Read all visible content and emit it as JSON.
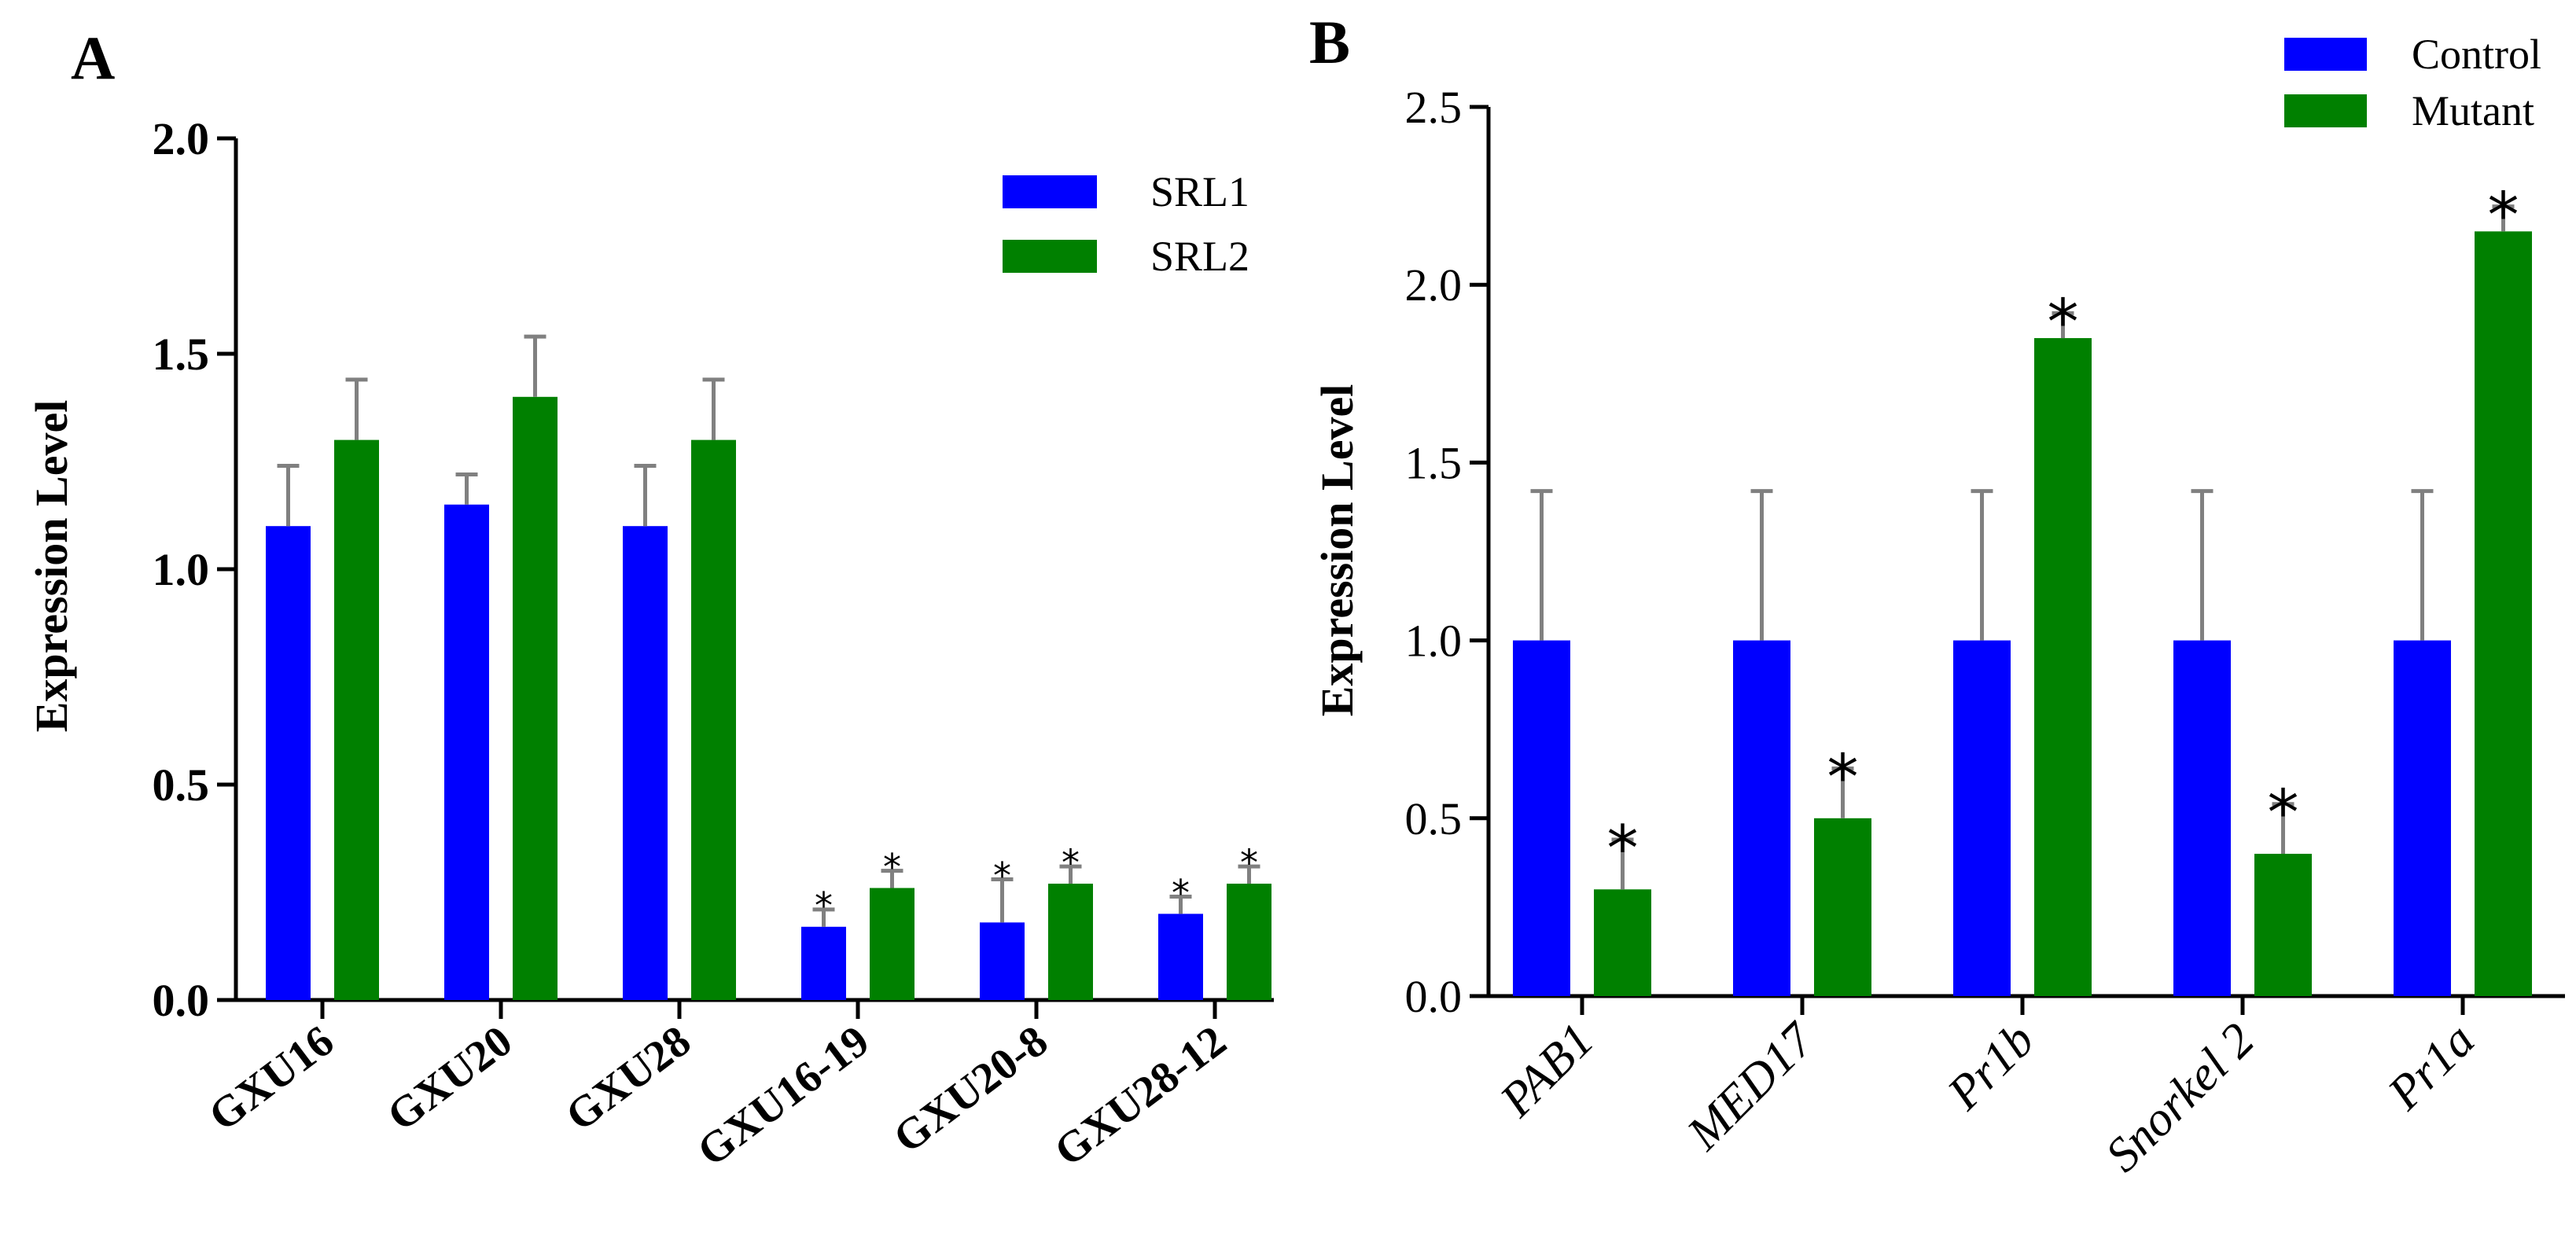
{
  "chart_data": [
    {
      "panel": "A",
      "type": "bar",
      "ylabel": "Expression Level",
      "ylim": [
        0,
        2.0
      ],
      "yticks": [
        "0.0",
        "0.5",
        "1.0",
        "1.5",
        "2.0"
      ],
      "categories": [
        "GXU16",
        "GXU20",
        "GXU28",
        "GXU16-19",
        "GXU20-8",
        "GXU28-12"
      ],
      "series": [
        {
          "name": "SRL1",
          "color": "#0000ff",
          "values": [
            1.1,
            1.15,
            1.1,
            0.17,
            0.18,
            0.2
          ],
          "errors": [
            0.14,
            0.07,
            0.14,
            0.04,
            0.1,
            0.04
          ],
          "sig": [
            "",
            "",
            "",
            "*",
            "*",
            "*"
          ]
        },
        {
          "name": "SRL2",
          "color": "#008000",
          "values": [
            1.3,
            1.4,
            1.3,
            0.26,
            0.27,
            0.27
          ],
          "errors": [
            0.14,
            0.14,
            0.14,
            0.04,
            0.04,
            0.04
          ],
          "sig": [
            "",
            "",
            "",
            "*",
            "*",
            "*"
          ]
        }
      ],
      "legend_position": "top-right"
    },
    {
      "panel": "B",
      "type": "bar",
      "ylabel": "Expression Level",
      "ylim": [
        0,
        2.5
      ],
      "yticks": [
        "0.0",
        "0.5",
        "1.0",
        "1.5",
        "2.0",
        "2.5"
      ],
      "categories": [
        "PAB1",
        "MED17",
        "Pr1b",
        "Snorkel 2",
        "Pr1a"
      ],
      "series": [
        {
          "name": "Control",
          "color": "#0000ff",
          "values": [
            1.0,
            1.0,
            1.0,
            1.0,
            1.0
          ],
          "errors": [
            0.42,
            0.42,
            0.42,
            0.42,
            0.42
          ],
          "sig": [
            "",
            "",
            "",
            "",
            ""
          ]
        },
        {
          "name": "Mutant",
          "color": "#008000",
          "values": [
            0.3,
            0.5,
            1.85,
            0.4,
            2.15
          ],
          "errors": [
            0.14,
            0.14,
            0.07,
            0.14,
            0.07
          ],
          "sig": [
            "*",
            "*",
            "*",
            "*",
            "*"
          ]
        }
      ],
      "legend_position": "top-right"
    }
  ]
}
